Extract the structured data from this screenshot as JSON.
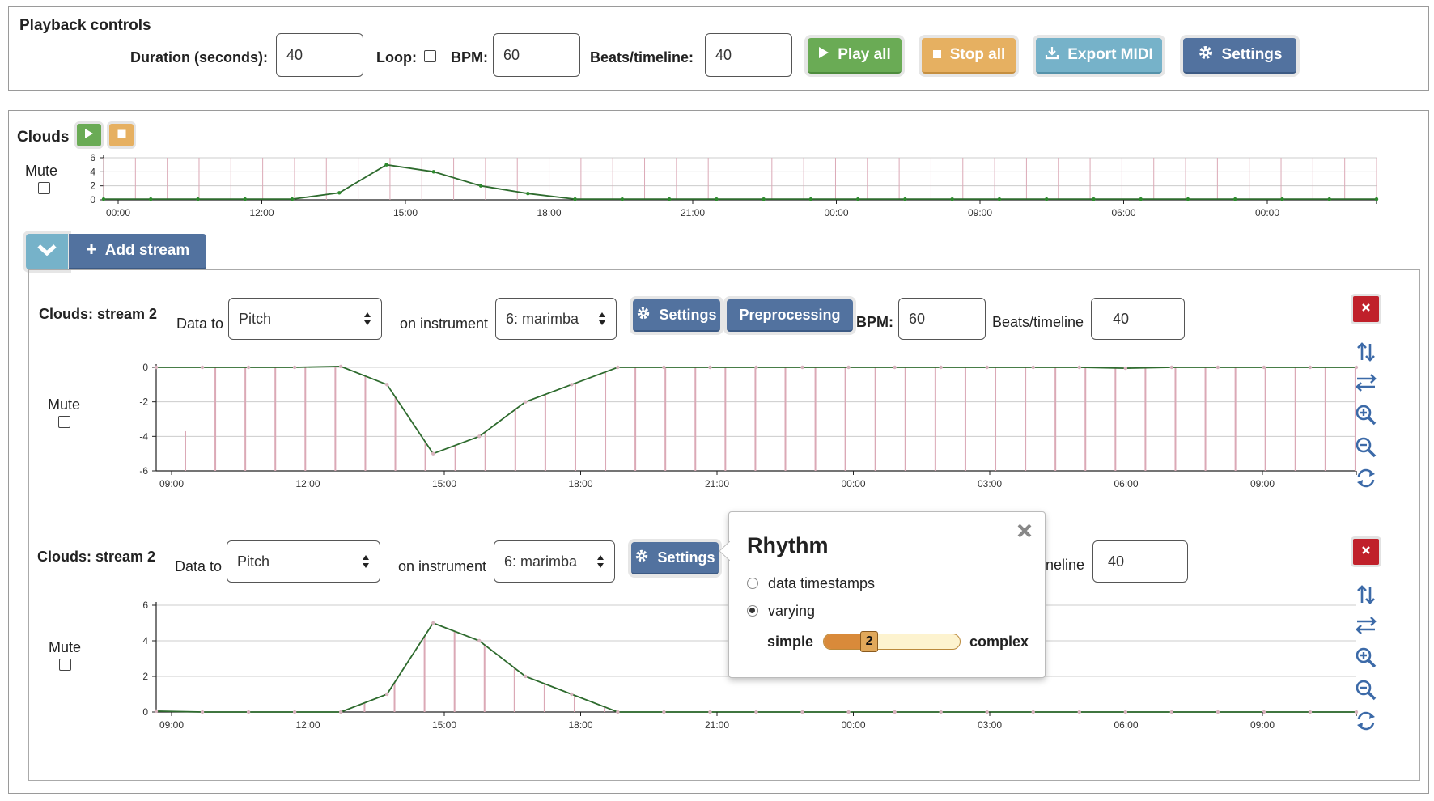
{
  "playback": {
    "title": "Playback controls",
    "duration_label": "Duration (seconds):",
    "duration_value": "40",
    "loop_label": "Loop:",
    "loop_checked": false,
    "bpm_label": "BPM:",
    "bpm_value": "60",
    "beats_label": "Beats/timeline:",
    "beats_value": "40",
    "play_all": "Play all",
    "stop_all": "Stop all",
    "export_midi": "Export MIDI",
    "settings": "Settings"
  },
  "clouds": {
    "title": "Clouds",
    "mute_label": "Mute",
    "add_stream": "Add stream"
  },
  "stream1": {
    "title": "Clouds: stream 2",
    "data_to_label": "Data to",
    "data_to_value": "Pitch",
    "instrument_label": "on instrument",
    "instrument_value": "6: marimba",
    "settings": "Settings",
    "preprocessing": "Preprocessing",
    "bpm_label": "BPM:",
    "bpm_value": "60",
    "beats_label": "Beats/timeline",
    "beats_value": "40",
    "mute_label": "Mute"
  },
  "stream2": {
    "title": "Clouds: stream 2",
    "data_to_label": "Data to",
    "data_to_value": "Pitch",
    "instrument_label": "on instrument",
    "instrument_value": "6: marimba",
    "settings": "Settings",
    "beats_label_partial": "neline",
    "beats_value": "40",
    "mute_label": "Mute"
  },
  "rhythm_popover": {
    "title": "Rhythm",
    "option1": "data timestamps",
    "option2": "varying",
    "selected": "varying",
    "simple_label": "simple",
    "complex_label": "complex",
    "slider_value": "2",
    "slider_fraction": 0.33
  },
  "colors": {
    "line": "#2e6b2e",
    "bars": "#dba9b6",
    "grid": "#cccccc",
    "play": "#6aab55",
    "stop": "#e6b061",
    "export": "#76b2c9",
    "settings": "#52729f",
    "delete": "#c0202a"
  },
  "icons": {
    "play": "play-icon",
    "stop": "stop-icon",
    "export": "download-icon",
    "settings": "gear-icon",
    "collapse": "chevron-down-icon",
    "add": "plus-icon",
    "delete": "close-icon",
    "tools": [
      "sort-vertical-icon",
      "swap-horizontal-icon",
      "zoom-in-icon",
      "zoom-out-icon",
      "reset-icon"
    ]
  },
  "chart_data": [
    {
      "type": "line",
      "name": "clouds-overview",
      "title": "",
      "xlabel": "",
      "ylabel": "",
      "x_tick_labels": [
        "00:00",
        "12:00",
        "15:00",
        "18:00",
        "21:00",
        "00:00",
        "09:00",
        "06:00",
        "00:00"
      ],
      "yticks": [
        0,
        2,
        4,
        6
      ],
      "ylim": [
        0,
        6
      ],
      "values": [
        0.1,
        0.1,
        0.1,
        0.1,
        0.1,
        1.0,
        5.0,
        4.0,
        2.0,
        0.9,
        0.1,
        0.1,
        0.1,
        0.1,
        0.1,
        0.1,
        0.1,
        0.1,
        0.1,
        0.1,
        0.1,
        0.1,
        0.1,
        0.1,
        0.1,
        0.1,
        0.1,
        0.1
      ],
      "vertical_grid": true,
      "grid": true
    },
    {
      "type": "line",
      "name": "stream-1-pitch",
      "title": "",
      "xlabel": "",
      "ylabel": "",
      "x_tick_labels": [
        "09:00",
        "12:00",
        "15:00",
        "18:00",
        "21:00",
        "00:00",
        "03:00",
        "06:00",
        "09:00"
      ],
      "yticks": [
        0,
        -2,
        -4,
        -6
      ],
      "ylim": [
        -6,
        0
      ],
      "values": [
        0,
        0,
        0,
        0,
        0.05,
        -1,
        -5,
        -4,
        -2,
        -1,
        0,
        0,
        0,
        0,
        0,
        0,
        0,
        0,
        0,
        0,
        0,
        -0.05,
        0,
        0,
        0,
        0,
        0
      ],
      "bars": [
        -6,
        -6,
        -6,
        -6,
        -6,
        -6,
        -6,
        -6,
        -6,
        -6,
        -6,
        -6,
        -6,
        -6,
        -6,
        -6,
        -6,
        -6,
        -6,
        -6,
        -6,
        -6,
        -6,
        -6,
        -6,
        -6,
        -6,
        -6,
        -6,
        -6,
        -6,
        -6,
        -6,
        -6,
        -6,
        -6,
        -6,
        -6,
        -6
      ],
      "first_bar_value": -3.7,
      "grid": true
    },
    {
      "type": "line",
      "name": "stream-2-pitch",
      "title": "",
      "xlabel": "",
      "ylabel": "",
      "x_tick_labels": [
        "09:00",
        "12:00",
        "15:00",
        "18:00",
        "21:00",
        "00:00",
        "03:00",
        "06:00",
        "09:00"
      ],
      "yticks": [
        0,
        2,
        4,
        6
      ],
      "ylim": [
        0,
        6
      ],
      "values": [
        0.05,
        0,
        0,
        0,
        0,
        1,
        5,
        4,
        2,
        1,
        0,
        0,
        0,
        0,
        0,
        0,
        0,
        0,
        0,
        0,
        0,
        0,
        0,
        0,
        0,
        0,
        0
      ],
      "bars_grid": true,
      "grid": true
    }
  ]
}
